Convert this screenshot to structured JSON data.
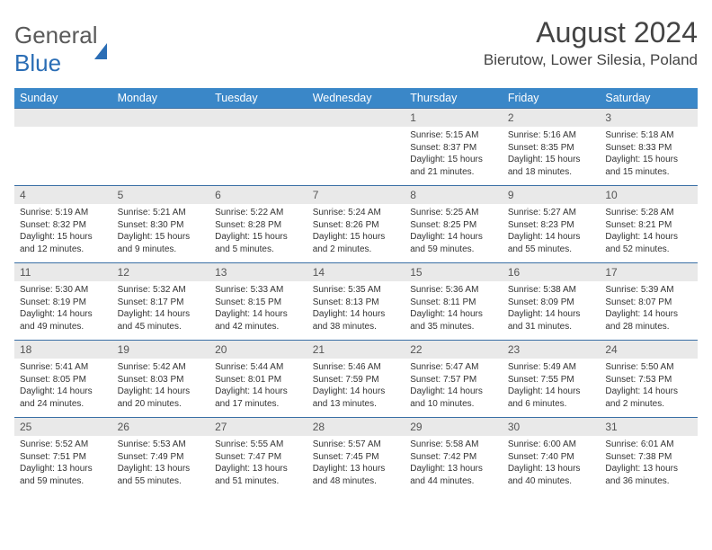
{
  "logo": {
    "word1": "General",
    "word2": "Blue"
  },
  "title": "August 2024",
  "location": "Bierutow, Lower Silesia, Poland",
  "colors": {
    "header_bg": "#3a87c8",
    "header_text": "#ffffff",
    "daynum_bg": "#e9e9e9",
    "row_border": "#3a6fa5",
    "logo_blue": "#2a6db5"
  },
  "dow": [
    "Sunday",
    "Monday",
    "Tuesday",
    "Wednesday",
    "Thursday",
    "Friday",
    "Saturday"
  ],
  "weeks": [
    [
      null,
      null,
      null,
      null,
      {
        "n": "1",
        "sr": "5:15 AM",
        "ss": "8:37 PM",
        "dl": "15 hours and 21 minutes."
      },
      {
        "n": "2",
        "sr": "5:16 AM",
        "ss": "8:35 PM",
        "dl": "15 hours and 18 minutes."
      },
      {
        "n": "3",
        "sr": "5:18 AM",
        "ss": "8:33 PM",
        "dl": "15 hours and 15 minutes."
      }
    ],
    [
      {
        "n": "4",
        "sr": "5:19 AM",
        "ss": "8:32 PM",
        "dl": "15 hours and 12 minutes."
      },
      {
        "n": "5",
        "sr": "5:21 AM",
        "ss": "8:30 PM",
        "dl": "15 hours and 9 minutes."
      },
      {
        "n": "6",
        "sr": "5:22 AM",
        "ss": "8:28 PM",
        "dl": "15 hours and 5 minutes."
      },
      {
        "n": "7",
        "sr": "5:24 AM",
        "ss": "8:26 PM",
        "dl": "15 hours and 2 minutes."
      },
      {
        "n": "8",
        "sr": "5:25 AM",
        "ss": "8:25 PM",
        "dl": "14 hours and 59 minutes."
      },
      {
        "n": "9",
        "sr": "5:27 AM",
        "ss": "8:23 PM",
        "dl": "14 hours and 55 minutes."
      },
      {
        "n": "10",
        "sr": "5:28 AM",
        "ss": "8:21 PM",
        "dl": "14 hours and 52 minutes."
      }
    ],
    [
      {
        "n": "11",
        "sr": "5:30 AM",
        "ss": "8:19 PM",
        "dl": "14 hours and 49 minutes."
      },
      {
        "n": "12",
        "sr": "5:32 AM",
        "ss": "8:17 PM",
        "dl": "14 hours and 45 minutes."
      },
      {
        "n": "13",
        "sr": "5:33 AM",
        "ss": "8:15 PM",
        "dl": "14 hours and 42 minutes."
      },
      {
        "n": "14",
        "sr": "5:35 AM",
        "ss": "8:13 PM",
        "dl": "14 hours and 38 minutes."
      },
      {
        "n": "15",
        "sr": "5:36 AM",
        "ss": "8:11 PM",
        "dl": "14 hours and 35 minutes."
      },
      {
        "n": "16",
        "sr": "5:38 AM",
        "ss": "8:09 PM",
        "dl": "14 hours and 31 minutes."
      },
      {
        "n": "17",
        "sr": "5:39 AM",
        "ss": "8:07 PM",
        "dl": "14 hours and 28 minutes."
      }
    ],
    [
      {
        "n": "18",
        "sr": "5:41 AM",
        "ss": "8:05 PM",
        "dl": "14 hours and 24 minutes."
      },
      {
        "n": "19",
        "sr": "5:42 AM",
        "ss": "8:03 PM",
        "dl": "14 hours and 20 minutes."
      },
      {
        "n": "20",
        "sr": "5:44 AM",
        "ss": "8:01 PM",
        "dl": "14 hours and 17 minutes."
      },
      {
        "n": "21",
        "sr": "5:46 AM",
        "ss": "7:59 PM",
        "dl": "14 hours and 13 minutes."
      },
      {
        "n": "22",
        "sr": "5:47 AM",
        "ss": "7:57 PM",
        "dl": "14 hours and 10 minutes."
      },
      {
        "n": "23",
        "sr": "5:49 AM",
        "ss": "7:55 PM",
        "dl": "14 hours and 6 minutes."
      },
      {
        "n": "24",
        "sr": "5:50 AM",
        "ss": "7:53 PM",
        "dl": "14 hours and 2 minutes."
      }
    ],
    [
      {
        "n": "25",
        "sr": "5:52 AM",
        "ss": "7:51 PM",
        "dl": "13 hours and 59 minutes."
      },
      {
        "n": "26",
        "sr": "5:53 AM",
        "ss": "7:49 PM",
        "dl": "13 hours and 55 minutes."
      },
      {
        "n": "27",
        "sr": "5:55 AM",
        "ss": "7:47 PM",
        "dl": "13 hours and 51 minutes."
      },
      {
        "n": "28",
        "sr": "5:57 AM",
        "ss": "7:45 PM",
        "dl": "13 hours and 48 minutes."
      },
      {
        "n": "29",
        "sr": "5:58 AM",
        "ss": "7:42 PM",
        "dl": "13 hours and 44 minutes."
      },
      {
        "n": "30",
        "sr": "6:00 AM",
        "ss": "7:40 PM",
        "dl": "13 hours and 40 minutes."
      },
      {
        "n": "31",
        "sr": "6:01 AM",
        "ss": "7:38 PM",
        "dl": "13 hours and 36 minutes."
      }
    ]
  ],
  "labels": {
    "sunrise": "Sunrise:",
    "sunset": "Sunset:",
    "daylight": "Daylight:"
  }
}
